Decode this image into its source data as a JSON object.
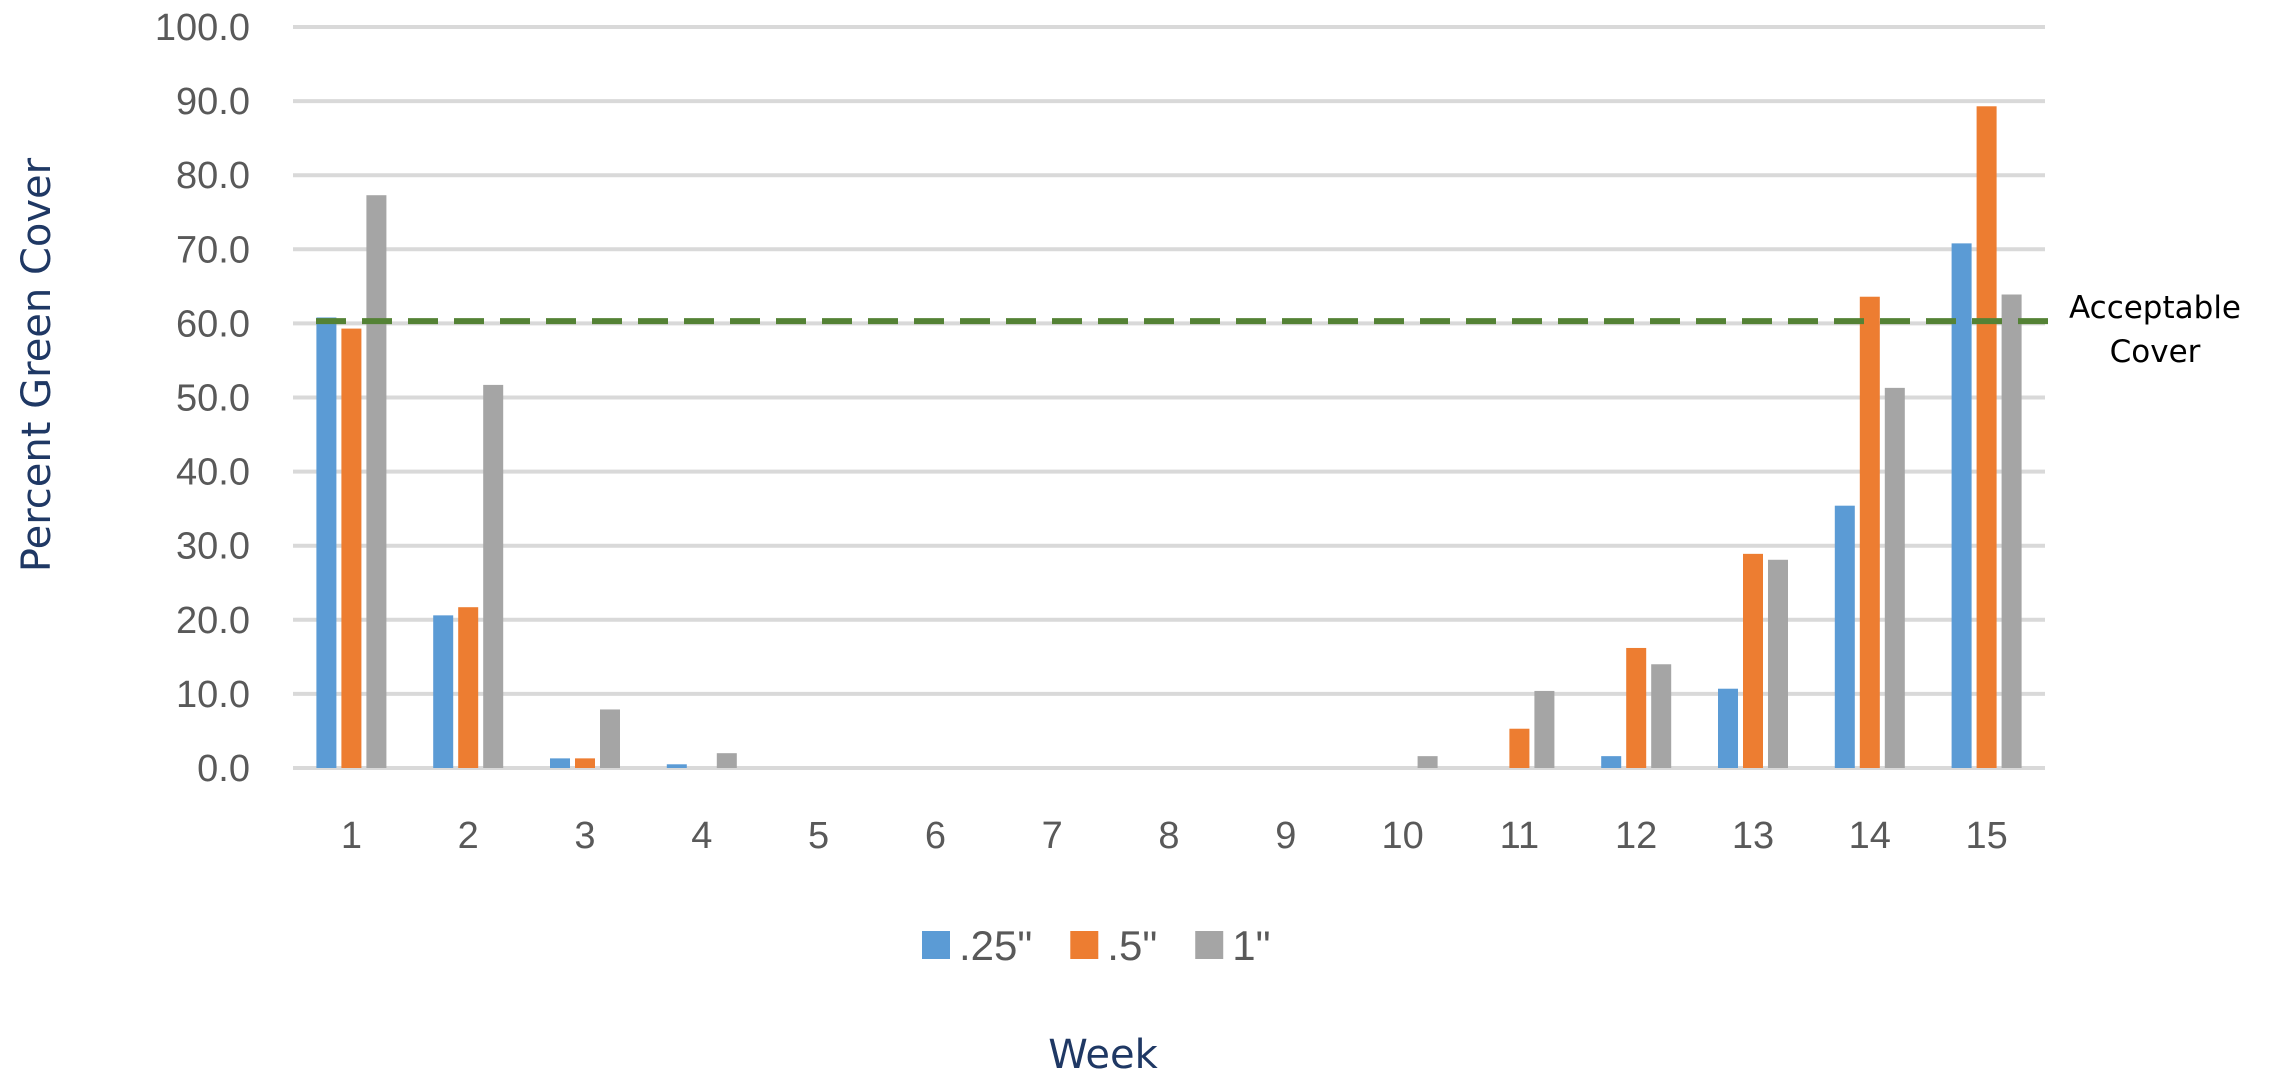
{
  "chart_data": {
    "type": "bar",
    "title": "",
    "xlabel": "Week",
    "ylabel": "Percent Green Cover",
    "categories": [
      "1",
      "2",
      "3",
      "4",
      "5",
      "6",
      "7",
      "8",
      "9",
      "10",
      "11",
      "12",
      "13",
      "14",
      "15"
    ],
    "series": [
      {
        "name": ".25\"",
        "color": "#5b9bd5",
        "values": [
          60.8,
          20.6,
          1.3,
          0.5,
          0,
          0,
          0,
          0,
          0,
          0,
          0,
          1.6,
          10.7,
          35.4,
          70.8
        ]
      },
      {
        "name": ".5\"",
        "color": "#ed7d31",
        "values": [
          59.3,
          21.7,
          1.3,
          0,
          0,
          0,
          0,
          0,
          0,
          0,
          5.3,
          16.2,
          28.9,
          63.6,
          89.3
        ]
      },
      {
        "name": "1\"",
        "color": "#a5a5a5",
        "values": [
          77.3,
          51.7,
          7.9,
          2.0,
          0,
          0,
          0,
          0,
          0,
          1.6,
          10.4,
          14.0,
          28.1,
          51.3,
          63.9
        ]
      }
    ],
    "ylim": [
      0,
      100
    ],
    "yticks": [
      "0.0",
      "10.0",
      "20.0",
      "30.0",
      "40.0",
      "50.0",
      "60.0",
      "70.0",
      "80.0",
      "90.0",
      "100.0"
    ],
    "grid": true,
    "legend_position": "bottom",
    "reference_line": {
      "value": 60.3,
      "label_line1": "Acceptable",
      "label_line2": "Cover",
      "color": "#548235",
      "style": "dashed"
    }
  }
}
